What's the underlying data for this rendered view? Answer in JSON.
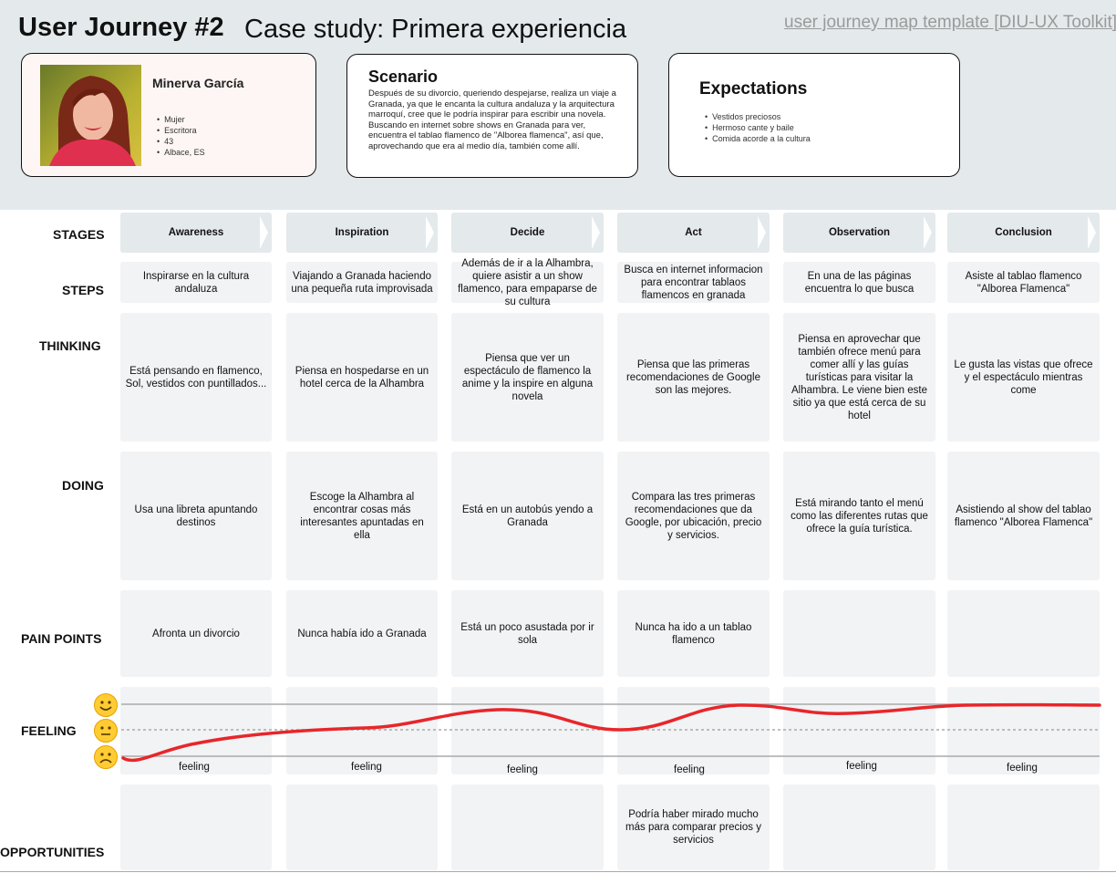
{
  "header": {
    "title": "User Journey #2",
    "subtitle": "Case study: Primera experiencia",
    "template_link": "user journey map template [DIU-UX Toolkit]"
  },
  "persona": {
    "name": "Minerva García",
    "attributes": [
      "Mujer",
      "Escritora",
      "43",
      "Albace, ES"
    ]
  },
  "scenario": {
    "title": "Scenario",
    "text": "Después de su divorcio, queriendo despejarse, realiza un viaje a Granada, ya que le encanta la cultura andaluza y la arquitectura marroquí, cree que le podría inspirar para escribir una novela. Buscando en internet sobre shows en Granada para ver, encuentra el tablao flamenco de \"Alborea flamenca\", así que, aprovechando que era al medio día, también come allí."
  },
  "expectations": {
    "title": "Expectations",
    "items": [
      "Vestidos preciosos",
      "Hermoso cante y baile",
      "Comida acorde a la cultura"
    ]
  },
  "row_labels": {
    "stages": "STAGES",
    "steps": "STEPS",
    "thinking": "THINKING",
    "doing": "DOING",
    "pain_points": "PAIN POINTS",
    "feeling": "FEELING",
    "opportunities": "OPPORTUNITIES"
  },
  "stages": [
    "Awareness",
    "Inspiration",
    "Decide",
    "Act",
    "Observation",
    "Conclusion"
  ],
  "steps": [
    "Inspirarse en la cultura andaluza",
    "Viajando a Granada haciendo una pequeña ruta improvisada",
    "Además de ir a la Alhambra, quiere asistir a un show flamenco, para empaparse de su cultura",
    "Busca en internet informacion para encontrar tablaos flamencos en granada",
    "En una de las páginas encuentra lo que busca",
    "Asiste al tablao flamenco \"Alborea Flamenca\""
  ],
  "thinking": [
    "Está pensando en flamenco, Sol, vestidos con puntillados...",
    "Piensa en hospedarse en un hotel cerca de la Alhambra",
    "Piensa que ver un espectáculo de flamenco la anime y la inspire en alguna novela",
    "Piensa que las primeras recomendaciones de Google son las mejores.",
    "Piensa en aprovechar que también ofrece menú para comer allí y las guías turísticas para visitar la Alhambra. Le viene bien este sitio ya que está cerca de su hotel",
    "Le gusta las vistas que ofrece y el espectáculo mientras come"
  ],
  "doing": [
    "Usa una libreta apuntando destinos",
    "Escoge la Alhambra al encontrar cosas más interesantes apuntadas en ella",
    "Está en un autobús yendo a Granada",
    "Compara las tres primeras recomendaciones que da Google, por ubicación, precio y servicios.",
    "Está mirando tanto el menú como las diferentes rutas que ofrece la guía turística.",
    "Asistiendo al show del tablao flamenco \"Alborea Flamenca\""
  ],
  "pain_points": [
    "Afronta un divorcio",
    "Nunca había ido a Granada",
    "Está un poco asustada por ir sola",
    "Nunca ha ido a un tablao flamenco",
    "",
    ""
  ],
  "feeling": {
    "labels": [
      "feeling",
      "feeling",
      "feeling",
      "feeling",
      "feeling",
      "feeling"
    ],
    "levels": [
      "sad",
      "neutral",
      "happy",
      "neutral",
      "happy",
      "happy"
    ],
    "curve_color": "#e8262a",
    "emojis": [
      "happy-face",
      "neutral-face",
      "sad-face"
    ]
  },
  "opportunities": [
    "",
    "",
    "",
    "Podría haber mirado mucho más para comparar precios y servicios",
    "",
    ""
  ]
}
